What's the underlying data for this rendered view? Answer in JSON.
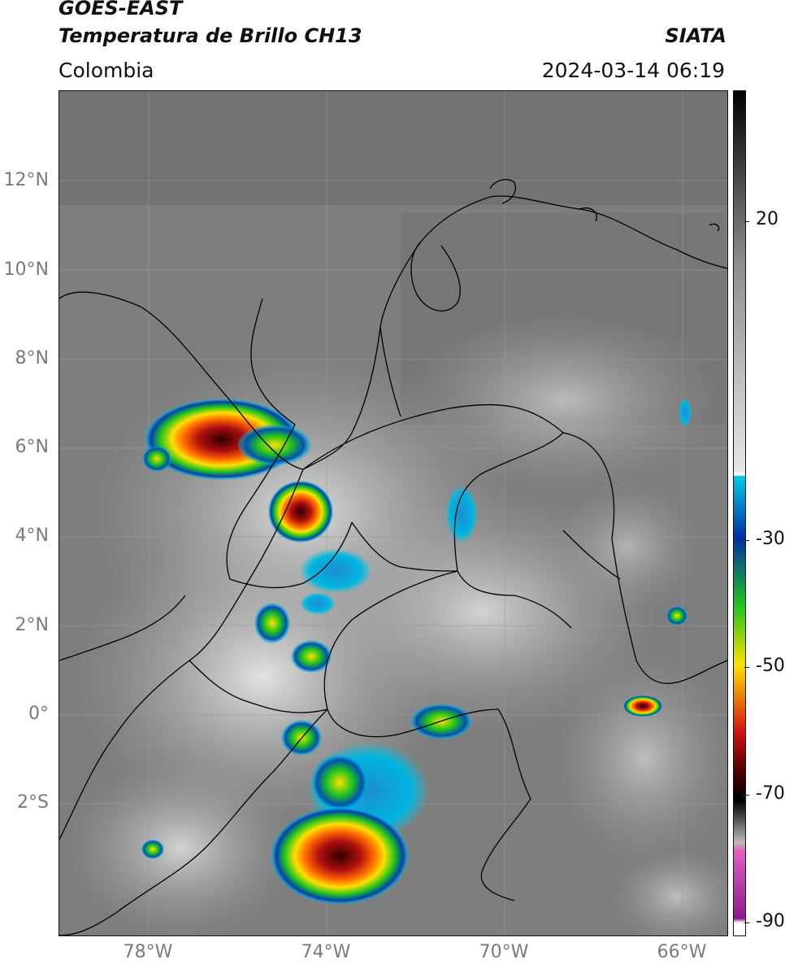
{
  "header": {
    "satellite": "GOES-EAST",
    "product": "Temperatura de Brillo CH13",
    "region": "Colombia",
    "brand": "SIATA",
    "datetime": "2024-03-14 06:19"
  },
  "map": {
    "lat_labels": [
      "12°N",
      "10°N",
      "8°N",
      "6°N",
      "4°N",
      "2°N",
      "0°",
      "2°S"
    ],
    "lon_labels": [
      "78°W",
      "74°W",
      "70°W",
      "66°W"
    ],
    "grid": true
  },
  "colorbar": {
    "labels": [
      "20",
      "-30",
      "-50",
      "-70",
      "-90"
    ],
    "colors": {
      "warm_top": "#000000",
      "gray_mid": "#8c8c8c",
      "light": "#e6e6e6",
      "cyan": "#00c8e6",
      "blue": "#0030a0",
      "green": "#22c41e",
      "yellow": "#ffe000",
      "red": "#d01010",
      "dark_red": "#400000",
      "black": "#000000",
      "pink": "#e060c0",
      "purple": "#8c1a8c"
    }
  }
}
